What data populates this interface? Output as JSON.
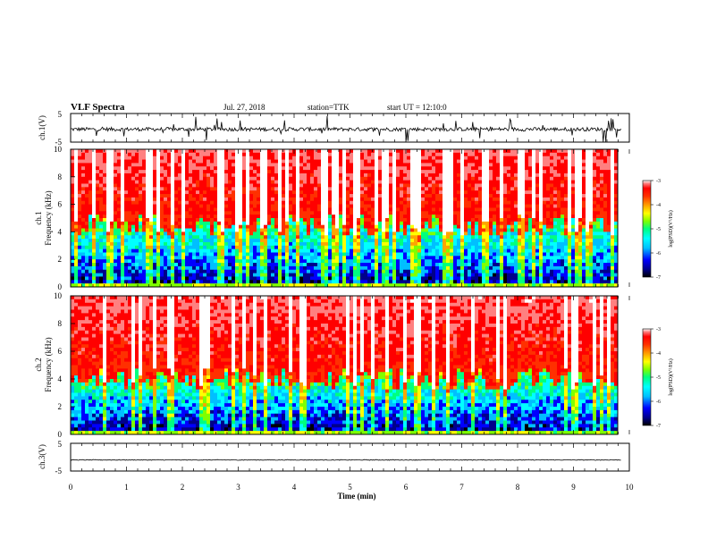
{
  "header": {
    "title": "VLF Spectra",
    "date": "Jul. 27, 2018",
    "station": "station=TTK",
    "start": "start UT = 12:10:0"
  },
  "colors": {
    "background": "#ffffff",
    "axis": "#000000",
    "trace": "#000000",
    "colormap": [
      "#000000",
      "#00008b",
      "#0000ff",
      "#00bfff",
      "#00ffff",
      "#00ff7f",
      "#7fff00",
      "#ffff00",
      "#ffa500",
      "#ff3000",
      "#ff0000",
      "#ff8080",
      "#ffffff"
    ]
  },
  "chart_data": [
    {
      "type": "line",
      "panel": "ch1-waveform",
      "ylabel": "ch.1(V)",
      "yticks": [
        "5",
        "-5"
      ],
      "ylim": [
        -5,
        5
      ],
      "xlim": [
        0,
        10
      ],
      "approx_level": -0.5,
      "note_series": "noisy waveform with impulsive spikes",
      "grid": false
    },
    {
      "type": "heatmap",
      "panel": "ch1-spectrogram",
      "ylabel_line1": "ch.1",
      "ylabel_line2": "Frequency (kHz)",
      "ylim": [
        0,
        10
      ],
      "yticks": [
        "0",
        "2",
        "4",
        "6",
        "8",
        "10"
      ],
      "xlim": [
        0,
        10
      ],
      "transition_khz": 4.5,
      "colorbar": {
        "label": "log(PSD)(V²/Hz)",
        "range": [
          -7,
          -3
        ],
        "ticks": [
          "-3",
          "-4",
          "-5",
          "-6",
          "-7"
        ]
      }
    },
    {
      "type": "heatmap",
      "panel": "ch2-spectrogram",
      "ylabel_line1": "ch.2",
      "ylabel_line2": "Frequency (kHz)",
      "ylim": [
        0,
        10
      ],
      "yticks": [
        "0",
        "2",
        "4",
        "6",
        "8",
        "10"
      ],
      "xlim": [
        0,
        10
      ],
      "transition_khz": 4.0,
      "colorbar": {
        "label": "log(PSD)(V²/Hz)",
        "range": [
          -7,
          -3
        ],
        "ticks": [
          "-3",
          "-4",
          "-5",
          "-6",
          "-7"
        ]
      }
    },
    {
      "type": "line",
      "panel": "ch3-waveform",
      "ylabel": "ch.3(V)",
      "yticks": [
        "5",
        "-5"
      ],
      "ylim": [
        -5,
        5
      ],
      "xlim": [
        0,
        10
      ],
      "approx_level": -1,
      "grid": false,
      "xlabel": "Time (min)",
      "xticks": [
        "0",
        "1",
        "2",
        "3",
        "4",
        "5",
        "6",
        "7",
        "8",
        "9",
        "10"
      ]
    }
  ]
}
